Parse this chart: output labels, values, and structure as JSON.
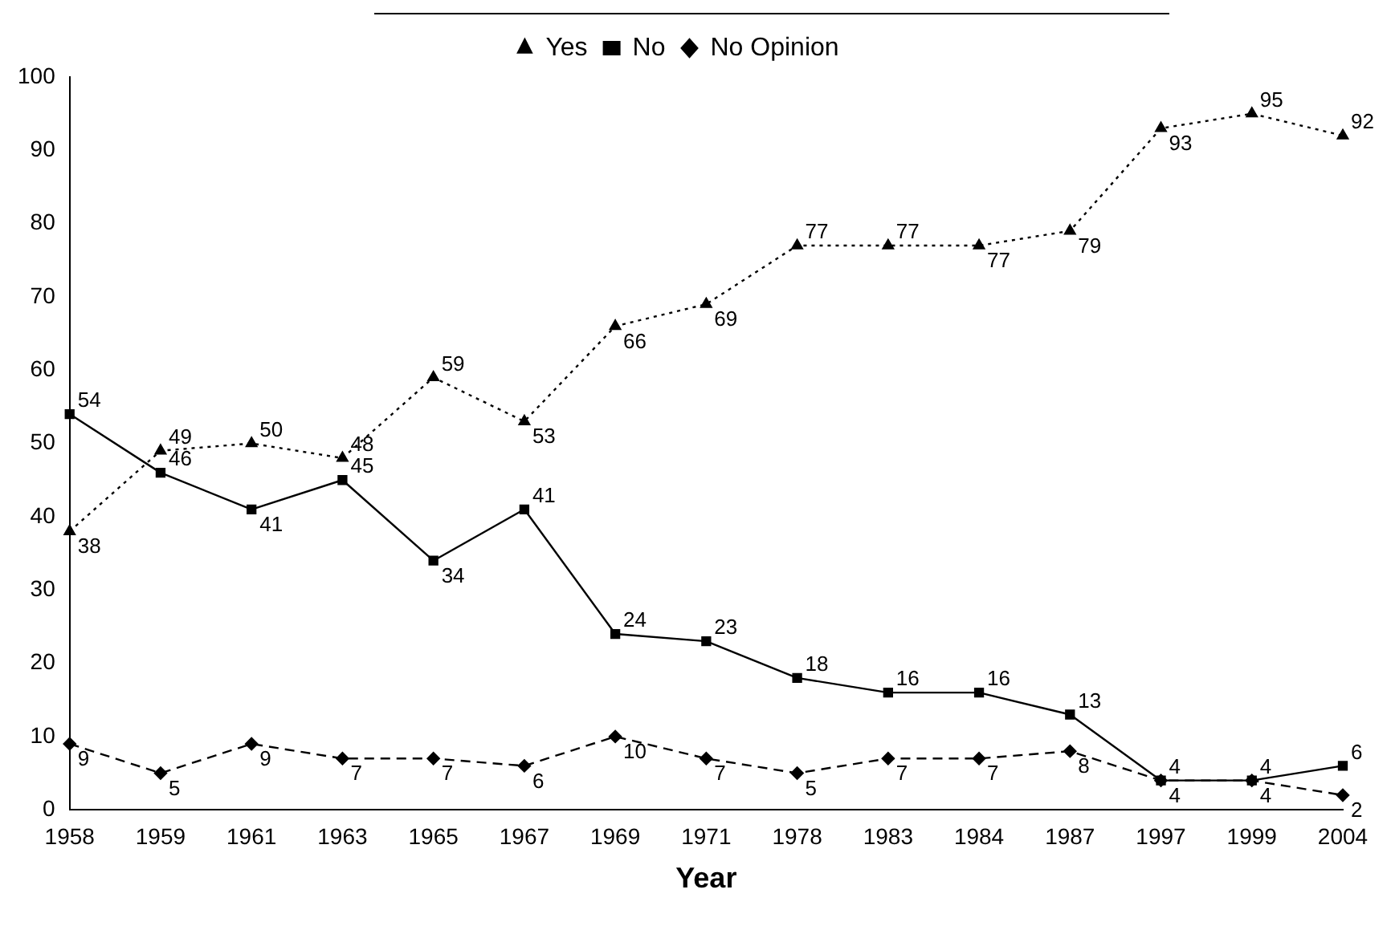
{
  "chart_data": {
    "type": "line",
    "xlabel": "Year",
    "categories": [
      "1958",
      "1959",
      "1961",
      "1963",
      "1965",
      "1967",
      "1969",
      "1971",
      "1978",
      "1983",
      "1984",
      "1987",
      "1997",
      "1999",
      "2004"
    ],
    "series": [
      {
        "name": "Yes",
        "color": "#000000",
        "marker": "triangle",
        "line_style": "dotted",
        "values": [
          38,
          49,
          50,
          48,
          59,
          53,
          66,
          69,
          77,
          77,
          77,
          79,
          93,
          95,
          92
        ]
      },
      {
        "name": "No",
        "color": "#000000",
        "marker": "square",
        "line_style": "solid",
        "values": [
          54,
          46,
          41,
          45,
          34,
          41,
          24,
          23,
          18,
          16,
          16,
          13,
          4,
          4,
          6
        ]
      },
      {
        "name": "No Opinion",
        "color": "#000000",
        "marker": "diamond",
        "line_style": "dashed",
        "values": [
          9,
          5,
          9,
          7,
          7,
          6,
          10,
          7,
          5,
          7,
          7,
          8,
          4,
          4,
          2
        ]
      }
    ],
    "ylim": [
      0,
      100
    ],
    "yticks": [
      0,
      10,
      20,
      30,
      40,
      50,
      60,
      70,
      80,
      90,
      100
    ],
    "grid": false,
    "legend": "top",
    "data_labels": true
  }
}
